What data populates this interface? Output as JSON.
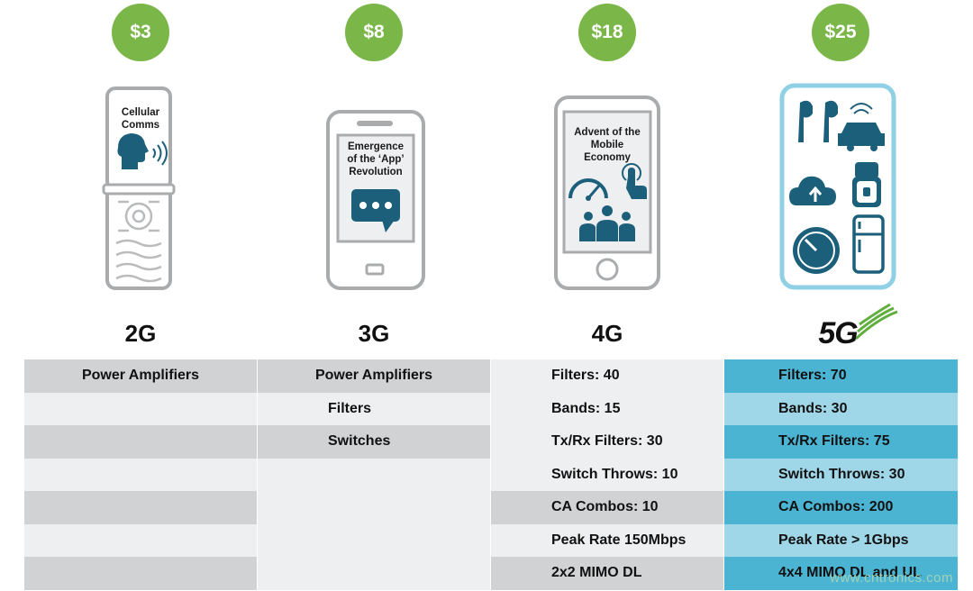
{
  "columns": [
    {
      "price": "$3",
      "generation": "2G",
      "device_text": [
        "Cellular",
        "Comms"
      ],
      "icons": [
        "speaking-head-icon",
        "keypad-icon"
      ]
    },
    {
      "price": "$8",
      "generation": "3G",
      "device_text": [
        "Emergence",
        "of the ‘App’",
        "Revolution"
      ],
      "icons": [
        "chat-bubble-icon"
      ]
    },
    {
      "price": "$18",
      "generation": "4G",
      "device_text": [
        "Advent of the",
        "Mobile",
        "Economy"
      ],
      "icons": [
        "speedometer-icon",
        "touch-hand-icon",
        "people-group-icon"
      ]
    },
    {
      "price": "$25",
      "generation": "5G",
      "device_text": [],
      "icons": [
        "earbuds-icon",
        "connected-car-icon",
        "cloud-upload-icon",
        "smartwatch-icon",
        "gauge-icon",
        "refrigerator-icon",
        "signal-waves-icon"
      ]
    }
  ],
  "table": {
    "rows": [
      [
        "Power Amplifiers",
        "Power Amplifiers",
        "Filters: 40",
        "Filters: 70"
      ],
      [
        "",
        "Filters",
        "Bands: 15",
        "Bands: 30"
      ],
      [
        "",
        "Switches",
        "Tx/Rx Filters: 30",
        "Tx/Rx Filters: 75"
      ],
      [
        "",
        "",
        "Switch Throws: 10",
        "Switch Throws: 30"
      ],
      [
        "",
        "",
        "CA Combos: 10",
        "CA Combos: 200"
      ],
      [
        "",
        "",
        "Peak Rate 150Mbps",
        "Peak Rate > 1Gbps"
      ],
      [
        "",
        "",
        "2x2 MIMO DL",
        "4x4 MIMO DL and UL"
      ]
    ]
  },
  "watermark": "www.cntronics.com",
  "colors": {
    "price_badge": "#7ab648",
    "gray_dark": "#d0d2d4",
    "gray_light": "#eeeff0",
    "blue_dark": "#4bb4d2",
    "blue_light": "#9fd7e8",
    "icon_blue": "#1b5f7a",
    "device_gray": "#a9abad"
  }
}
